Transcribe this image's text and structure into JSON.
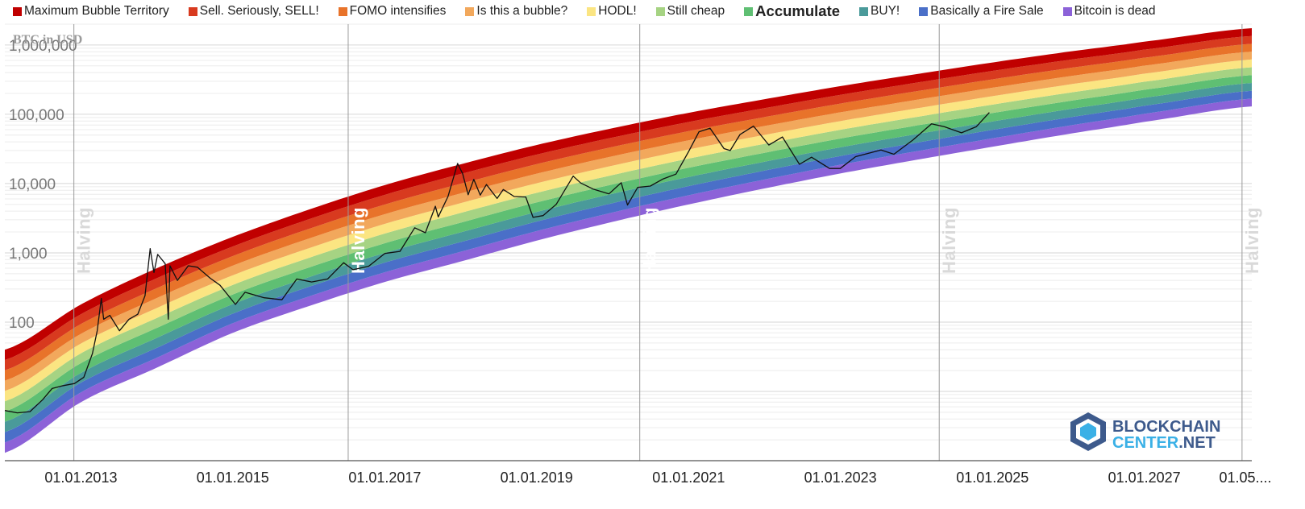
{
  "legend": [
    {
      "label": "Maximum Bubble Territory",
      "color": "#c00000"
    },
    {
      "label": "Sell. Seriously, SELL!",
      "color": "#d83a1f"
    },
    {
      "label": "FOMO intensifies",
      "color": "#e8732a"
    },
    {
      "label": "Is this a bubble?",
      "color": "#f2a85c"
    },
    {
      "label": "HODL!",
      "color": "#fbe582"
    },
    {
      "label": "Still cheap",
      "color": "#a6d383"
    },
    {
      "label": "Accumulate",
      "color": "#5fbf73",
      "bold": true
    },
    {
      "label": "BUY!",
      "color": "#4a9a9a"
    },
    {
      "label": "Basically a Fire Sale",
      "color": "#4a6fc8"
    },
    {
      "label": "Bitcoin is dead",
      "color": "#8c62d8"
    }
  ],
  "logo": {
    "line1": "BLOCKCHAIN",
    "line2a": "CENTER",
    "line2b": ".NET",
    "icon": "blockchaincenter-logo-icon"
  },
  "chart_data": {
    "type": "area",
    "title": "",
    "ylabel": "BTC in USD",
    "yscale": "log",
    "ylim": [
      1,
      2000000
    ],
    "y_ticks": [
      100,
      1000,
      10000,
      100000,
      1000000
    ],
    "y_tick_labels": [
      "100",
      "1,000",
      "10,000",
      "100,000",
      "1,000,000"
    ],
    "xlim": [
      "2012-01-01",
      "2028-06-01"
    ],
    "x_ticks": [
      "2013-01-01",
      "2015-01-01",
      "2017-01-01",
      "2019-01-01",
      "2021-01-01",
      "2023-01-01",
      "2025-01-01",
      "2027-01-01",
      "2028-05-01"
    ],
    "x_tick_labels": [
      "01.01.2013",
      "01.01.2015",
      "01.01.2017",
      "01.01.2019",
      "01.01.2021",
      "01.01.2023",
      "01.01.2025",
      "01.01.2027",
      "01.05...."
    ],
    "halvings": [
      {
        "date": "2012-11-28",
        "label": "Halving"
      },
      {
        "date": "2016-07-09",
        "label": "Halving"
      },
      {
        "date": "2020-05-11",
        "label": "Halving"
      },
      {
        "date": "2024-04-20",
        "label": "Halving"
      },
      {
        "date": "2028-04-15",
        "label": "Halving"
      }
    ],
    "bands": {
      "count": 10,
      "names": [
        "Bitcoin is dead",
        "Basically a Fire Sale",
        "BUY!",
        "Accumulate",
        "Still cheap",
        "HODL!",
        "Is this a bubble?",
        "FOMO intensifies",
        "Sell. Seriously, SELL!",
        "Maximum Bubble Territory"
      ],
      "lower_bound": [
        {
          "x": "2012-01-01",
          "y": 1.3
        },
        {
          "x": "2013-01-01",
          "y": 7
        },
        {
          "x": "2014-01-01",
          "y": 22
        },
        {
          "x": "2015-01-01",
          "y": 70
        },
        {
          "x": "2016-01-01",
          "y": 170
        },
        {
          "x": "2017-01-01",
          "y": 380
        },
        {
          "x": "2018-01-01",
          "y": 750
        },
        {
          "x": "2019-01-01",
          "y": 1500
        },
        {
          "x": "2020-01-01",
          "y": 2800
        },
        {
          "x": "2021-01-01",
          "y": 5000
        },
        {
          "x": "2022-01-01",
          "y": 8500
        },
        {
          "x": "2023-01-01",
          "y": 14000
        },
        {
          "x": "2024-01-01",
          "y": 22000
        },
        {
          "x": "2025-01-01",
          "y": 34000
        },
        {
          "x": "2026-01-01",
          "y": 52000
        },
        {
          "x": "2027-01-01",
          "y": 78000
        },
        {
          "x": "2028-06-01",
          "y": 130000
        }
      ],
      "upper_bound": [
        {
          "x": "2012-01-01",
          "y": 40
        },
        {
          "x": "2013-01-01",
          "y": 180
        },
        {
          "x": "2014-01-01",
          "y": 600
        },
        {
          "x": "2015-01-01",
          "y": 1700
        },
        {
          "x": "2016-01-01",
          "y": 4200
        },
        {
          "x": "2017-01-01",
          "y": 9500
        },
        {
          "x": "2018-01-01",
          "y": 19000
        },
        {
          "x": "2019-01-01",
          "y": 36000
        },
        {
          "x": "2020-01-01",
          "y": 63000
        },
        {
          "x": "2021-01-01",
          "y": 105000
        },
        {
          "x": "2022-01-01",
          "y": 165000
        },
        {
          "x": "2023-01-01",
          "y": 255000
        },
        {
          "x": "2024-01-01",
          "y": 380000
        },
        {
          "x": "2025-01-01",
          "y": 560000
        },
        {
          "x": "2026-01-01",
          "y": 800000
        },
        {
          "x": "2027-01-01",
          "y": 1120000
        },
        {
          "x": "2028-06-01",
          "y": 1750000
        }
      ]
    },
    "series": [
      {
        "type": "line",
        "color": "#111111",
        "points": [
          {
            "x": "2012-01-01",
            "y": 5.3
          },
          {
            "x": "2012-03-01",
            "y": 4.9
          },
          {
            "x": "2012-05-01",
            "y": 5.1
          },
          {
            "x": "2012-07-01",
            "y": 7.6
          },
          {
            "x": "2012-08-15",
            "y": 11
          },
          {
            "x": "2012-10-01",
            "y": 12
          },
          {
            "x": "2012-12-01",
            "y": 13
          },
          {
            "x": "2013-01-15",
            "y": 16
          },
          {
            "x": "2013-02-25",
            "y": 35
          },
          {
            "x": "2013-03-20",
            "y": 75
          },
          {
            "x": "2013-04-09",
            "y": 220
          },
          {
            "x": "2013-04-20",
            "y": 110
          },
          {
            "x": "2013-05-20",
            "y": 125
          },
          {
            "x": "2013-07-05",
            "y": 75
          },
          {
            "x": "2013-08-20",
            "y": 110
          },
          {
            "x": "2013-10-01",
            "y": 130
          },
          {
            "x": "2013-11-05",
            "y": 240
          },
          {
            "x": "2013-11-30",
            "y": 1150
          },
          {
            "x": "2013-12-18",
            "y": 520
          },
          {
            "x": "2014-01-05",
            "y": 950
          },
          {
            "x": "2014-02-10",
            "y": 700
          },
          {
            "x": "2014-02-25",
            "y": 110
          },
          {
            "x": "2014-03-05",
            "y": 650
          },
          {
            "x": "2014-04-10",
            "y": 400
          },
          {
            "x": "2014-06-01",
            "y": 650
          },
          {
            "x": "2014-07-15",
            "y": 620
          },
          {
            "x": "2014-09-15",
            "y": 430
          },
          {
            "x": "2014-11-01",
            "y": 340
          },
          {
            "x": "2015-01-14",
            "y": 180
          },
          {
            "x": "2015-03-01",
            "y": 270
          },
          {
            "x": "2015-06-01",
            "y": 225
          },
          {
            "x": "2015-08-25",
            "y": 210
          },
          {
            "x": "2015-11-05",
            "y": 420
          },
          {
            "x": "2016-01-15",
            "y": 380
          },
          {
            "x": "2016-04-01",
            "y": 420
          },
          {
            "x": "2016-06-17",
            "y": 720
          },
          {
            "x": "2016-08-01",
            "y": 570
          },
          {
            "x": "2016-10-15",
            "y": 640
          },
          {
            "x": "2017-01-01",
            "y": 980
          },
          {
            "x": "2017-03-15",
            "y": 1050
          },
          {
            "x": "2017-05-25",
            "y": 2300
          },
          {
            "x": "2017-07-15",
            "y": 1950
          },
          {
            "x": "2017-09-01",
            "y": 4700
          },
          {
            "x": "2017-09-15",
            "y": 3300
          },
          {
            "x": "2017-11-01",
            "y": 6500
          },
          {
            "x": "2017-12-17",
            "y": 19500
          },
          {
            "x": "2018-01-10",
            "y": 14000
          },
          {
            "x": "2018-02-06",
            "y": 6900
          },
          {
            "x": "2018-03-05",
            "y": 11500
          },
          {
            "x": "2018-04-05",
            "y": 6800
          },
          {
            "x": "2018-05-05",
            "y": 9700
          },
          {
            "x": "2018-06-25",
            "y": 6100
          },
          {
            "x": "2018-07-25",
            "y": 8200
          },
          {
            "x": "2018-09-15",
            "y": 6500
          },
          {
            "x": "2018-11-10",
            "y": 6400
          },
          {
            "x": "2018-12-15",
            "y": 3250
          },
          {
            "x": "2019-02-01",
            "y": 3450
          },
          {
            "x": "2019-04-05",
            "y": 5000
          },
          {
            "x": "2019-06-26",
            "y": 12800
          },
          {
            "x": "2019-08-01",
            "y": 10200
          },
          {
            "x": "2019-10-01",
            "y": 8300
          },
          {
            "x": "2019-12-15",
            "y": 7100
          },
          {
            "x": "2020-02-12",
            "y": 10300
          },
          {
            "x": "2020-03-13",
            "y": 4900
          },
          {
            "x": "2020-05-01",
            "y": 8800
          },
          {
            "x": "2020-07-01",
            "y": 9200
          },
          {
            "x": "2020-09-01",
            "y": 11700
          },
          {
            "x": "2020-11-01",
            "y": 13700
          },
          {
            "x": "2021-01-01",
            "y": 29000
          },
          {
            "x": "2021-02-20",
            "y": 56000
          },
          {
            "x": "2021-04-14",
            "y": 63000
          },
          {
            "x": "2021-06-20",
            "y": 32000
          },
          {
            "x": "2021-07-20",
            "y": 30000
          },
          {
            "x": "2021-09-05",
            "y": 51000
          },
          {
            "x": "2021-11-09",
            "y": 67500
          },
          {
            "x": "2022-01-22",
            "y": 36000
          },
          {
            "x": "2022-03-28",
            "y": 47000
          },
          {
            "x": "2022-06-18",
            "y": 19000
          },
          {
            "x": "2022-08-15",
            "y": 24000
          },
          {
            "x": "2022-11-10",
            "y": 16500
          },
          {
            "x": "2022-12-31",
            "y": 16500
          },
          {
            "x": "2023-03-15",
            "y": 24500
          },
          {
            "x": "2023-07-15",
            "y": 30500
          },
          {
            "x": "2023-09-15",
            "y": 26500
          },
          {
            "x": "2023-12-15",
            "y": 42500
          },
          {
            "x": "2024-03-14",
            "y": 73000
          },
          {
            "x": "2024-05-15",
            "y": 66000
          },
          {
            "x": "2024-08-05",
            "y": 54000
          },
          {
            "x": "2024-10-15",
            "y": 66000
          },
          {
            "x": "2024-12-17",
            "y": 106000
          }
        ]
      }
    ]
  }
}
